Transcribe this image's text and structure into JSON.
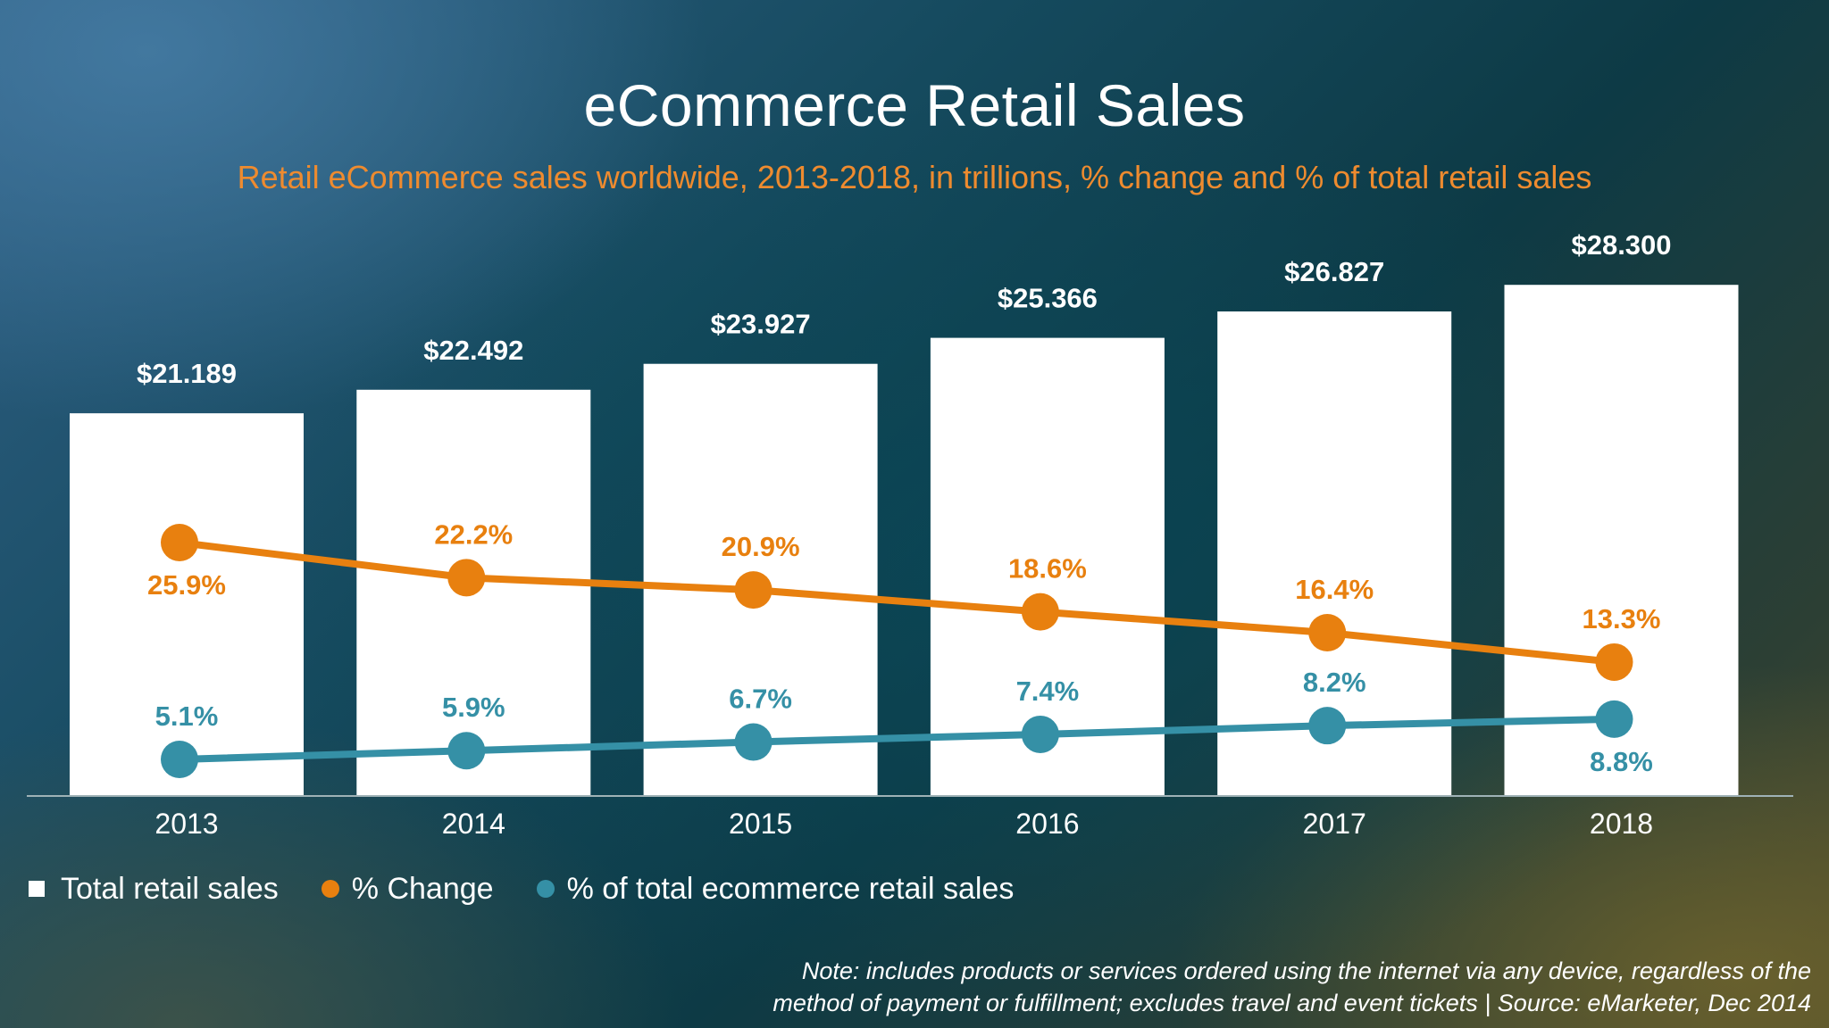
{
  "chart_data": {
    "type": "bar",
    "title": "eCommerce Retail Sales",
    "subtitle": "Retail eCommerce sales worldwide, 2013-2018, in trillions, % change and % of total retail sales",
    "categories": [
      "2013",
      "2014",
      "2015",
      "2016",
      "2017",
      "2018"
    ],
    "series": [
      {
        "name": "Total retail sales",
        "kind": "bar",
        "values": [
          21.189,
          22.492,
          23.927,
          25.366,
          26.827,
          28.3
        ],
        "labels": [
          "$21.189",
          "$22.492",
          "$23.927",
          "$25.366",
          "$26.827",
          "$28.300"
        ],
        "color": "#ffffff"
      },
      {
        "name": "% Change",
        "kind": "line",
        "values": [
          25.9,
          22.2,
          20.9,
          18.6,
          16.4,
          13.3
        ],
        "labels": [
          "25.9%",
          "22.2%",
          "20.9%",
          "18.6%",
          "16.4%",
          "13.3%"
        ],
        "label_position": [
          "below",
          "above",
          "above",
          "above",
          "above",
          "above"
        ],
        "color": "#e8800f"
      },
      {
        "name": "% of total ecommerce retail sales",
        "kind": "line",
        "values": [
          5.1,
          5.9,
          6.7,
          7.4,
          8.2,
          8.8
        ],
        "labels": [
          "5.1%",
          "5.9%",
          "6.7%",
          "7.4%",
          "8.2%",
          "8.8%"
        ],
        "label_position": [
          "above",
          "above",
          "above",
          "above",
          "above",
          "below"
        ],
        "color": "#3590a6"
      }
    ],
    "ylim": [
      0,
      30
    ],
    "grid": false,
    "legend_placement": "bottom-left"
  },
  "note": {
    "line1": "Note: includes products or services ordered using the internet via any device, regardless of the",
    "line2": "method of payment or fulfillment; excludes travel and event tickets  |  Source: eMarketer, Dec 2014"
  }
}
